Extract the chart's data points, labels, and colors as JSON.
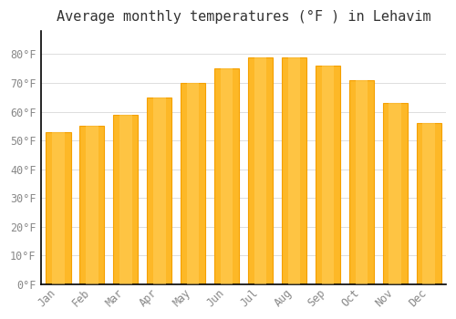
{
  "title": "Average monthly temperatures (°F ) in Lehavim",
  "months": [
    "Jan",
    "Feb",
    "Mar",
    "Apr",
    "May",
    "Jun",
    "Jul",
    "Aug",
    "Sep",
    "Oct",
    "Nov",
    "Dec"
  ],
  "values": [
    53,
    55,
    59,
    65,
    70,
    75,
    79,
    79,
    76,
    71,
    63,
    56
  ],
  "bar_color_center": "#FDB827",
  "bar_color_edge": "#F5A000",
  "background_color": "#FFFFFF",
  "plot_bg_color": "#FFFFFF",
  "grid_color": "#DDDDDD",
  "text_color": "#888888",
  "title_color": "#333333",
  "axis_color": "#000000",
  "ylim": [
    0,
    88
  ],
  "yticks": [
    0,
    10,
    20,
    30,
    40,
    50,
    60,
    70,
    80
  ],
  "title_fontsize": 11,
  "tick_fontsize": 8.5,
  "bar_width": 0.75
}
